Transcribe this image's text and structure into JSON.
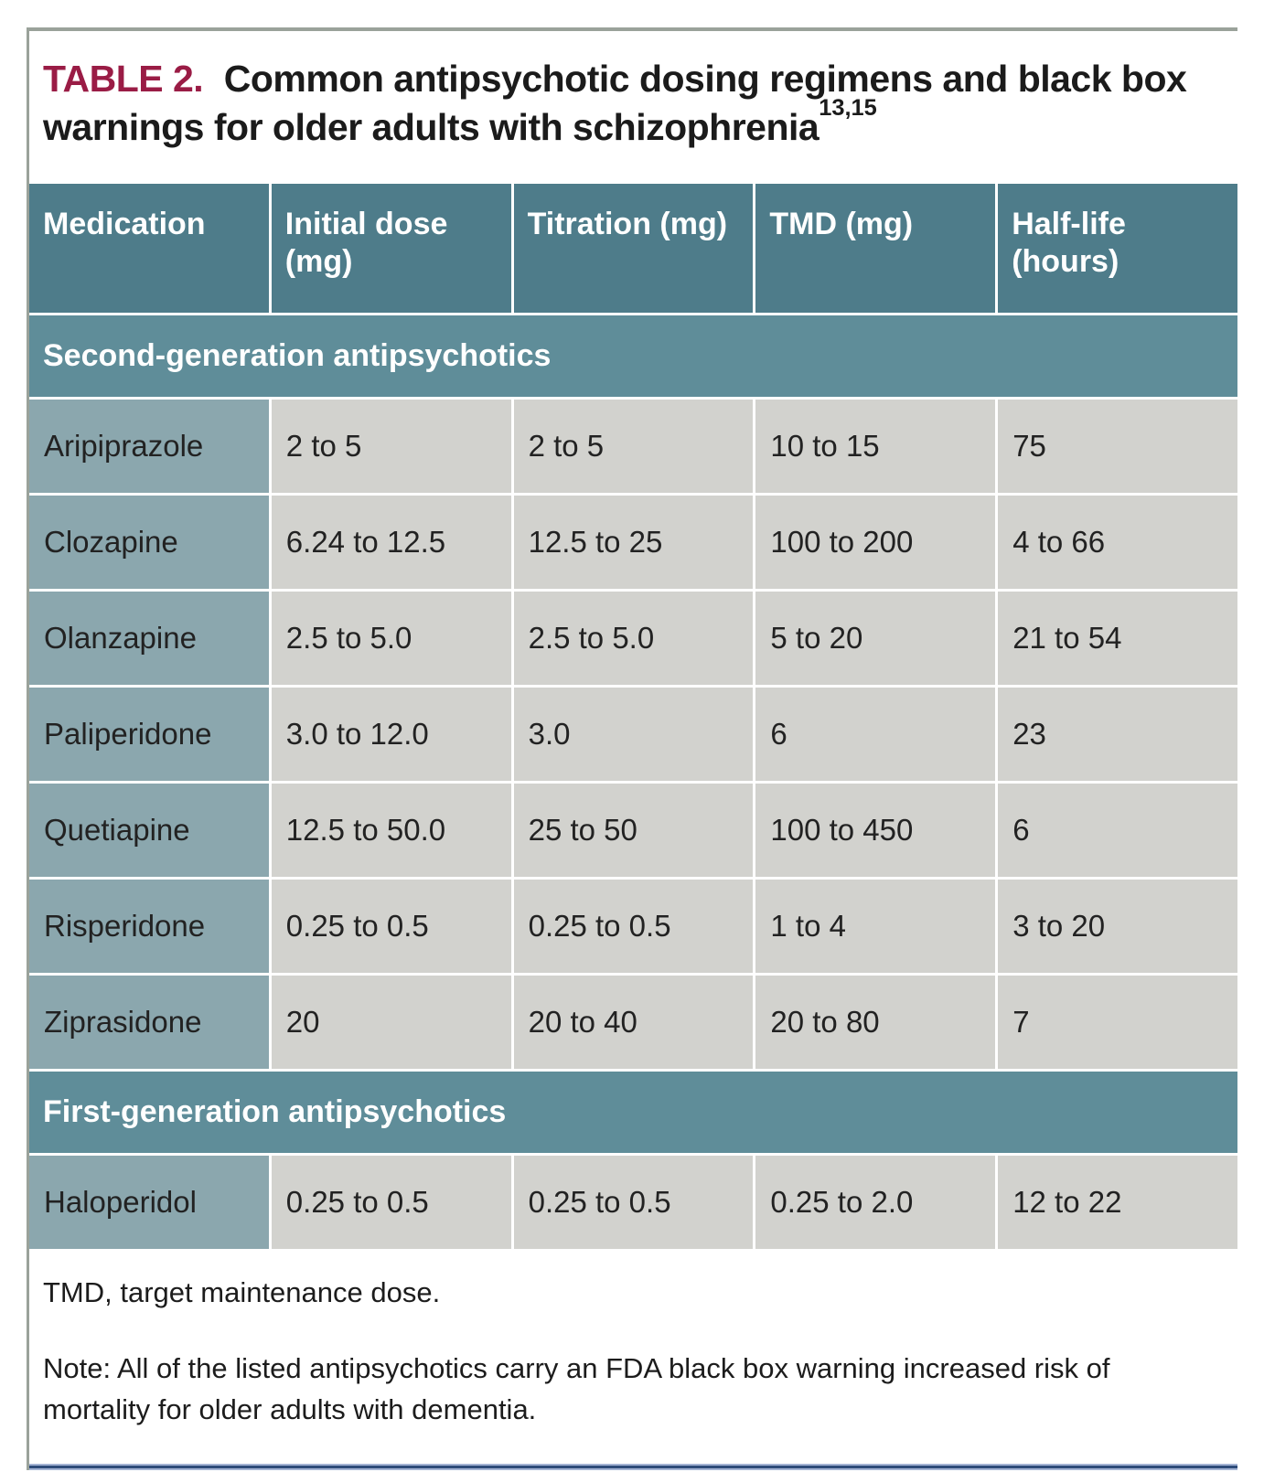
{
  "title": {
    "label": "TABLE 2.",
    "text": "Common antipsychotic dosing regimens and black box warnings for older adults with schizophrenia",
    "citations": "13,15"
  },
  "table": {
    "columns": [
      "Medication",
      "Initial dose (mg)",
      "Titration (mg)",
      "TMD (mg)",
      "Half-life (hours)"
    ],
    "sections": [
      {
        "label": "Second-generation antipsychotics",
        "rows": [
          {
            "medication": "Aripiprazole",
            "initial_dose": "2 to 5",
            "titration": "2 to 5",
            "tmd": "10 to 15",
            "half_life": "75"
          },
          {
            "medication": "Clozapine",
            "initial_dose": "6.24 to 12.5",
            "titration": "12.5 to 25",
            "tmd": "100 to 200",
            "half_life": "4 to 66"
          },
          {
            "medication": "Olanzapine",
            "initial_dose": "2.5 to 5.0",
            "titration": "2.5 to 5.0",
            "tmd": "5 to 20",
            "half_life": "21 to 54"
          },
          {
            "medication": "Paliperidone",
            "initial_dose": "3.0 to 12.0",
            "titration": "3.0",
            "tmd": "6",
            "half_life": "23"
          },
          {
            "medication": "Quetiapine",
            "initial_dose": "12.5 to 50.0",
            "titration": "25 to 50",
            "tmd": "100 to 450",
            "half_life": "6"
          },
          {
            "medication": "Risperidone",
            "initial_dose": "0.25 to 0.5",
            "titration": "0.25 to 0.5",
            "tmd": "1 to 4",
            "half_life": "3 to 20"
          },
          {
            "medication": "Ziprasidone",
            "initial_dose": "20",
            "titration": "20 to 40",
            "tmd": "20 to 80",
            "half_life": "7"
          }
        ]
      },
      {
        "label": "First-generation antipsychotics",
        "rows": [
          {
            "medication": "Haloperidol",
            "initial_dose": "0.25 to 0.5",
            "titration": "0.25 to 0.5",
            "tmd": "0.25 to 2.0",
            "half_life": "12 to 22"
          }
        ]
      }
    ]
  },
  "footnotes": {
    "abbreviation": "TMD, target maintenance dose.",
    "note": "Note: All of the listed antipsychotics carry an FDA black box warning increased risk of mortality for older adults with dementia."
  },
  "colors": {
    "header_teal": "#4e7c8a",
    "section_teal": "#5f8d99",
    "med_cell": "#8ba7ae",
    "data_cell": "#d2d2ce",
    "title_accent": "#9a1c45",
    "rule_gray": "#9aa29a",
    "bottom_line": "#2e4c7a"
  }
}
